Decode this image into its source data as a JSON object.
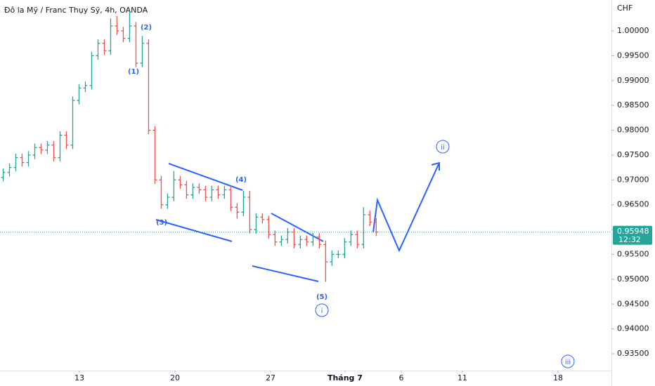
{
  "chart_data": {
    "type": "ohlc",
    "title": "Đô la Mỹ / Franc Thụy Sỹ, 4h, OANDA",
    "currency": "CHF",
    "x": [
      0,
      1,
      2,
      3,
      4,
      5,
      6,
      7,
      8,
      9,
      10,
      11,
      12,
      13,
      14,
      15,
      16,
      17,
      18,
      19,
      20,
      21,
      22,
      23,
      24,
      25,
      26,
      27,
      28,
      29,
      30,
      31,
      32,
      33,
      34,
      35,
      36,
      37,
      38,
      39,
      40,
      41,
      42,
      43,
      44,
      45,
      46,
      47,
      48,
      49,
      50,
      51,
      52,
      53,
      54,
      55,
      56,
      57,
      58,
      59
    ],
    "open": [
      0.9705,
      0.9715,
      0.9725,
      0.9745,
      0.9735,
      0.975,
      0.9765,
      0.976,
      0.977,
      0.9745,
      0.979,
      0.977,
      0.986,
      0.9885,
      0.989,
      0.995,
      0.9975,
      0.996,
      1.001,
      1.0,
      0.9985,
      1.001,
      0.9935,
      0.9975,
      0.98,
      0.97,
      0.965,
      0.9665,
      0.97,
      0.969,
      0.967,
      0.9685,
      0.968,
      0.9665,
      0.968,
      0.967,
      0.968,
      0.9645,
      0.9635,
      0.9665,
      0.96,
      0.9625,
      0.962,
      0.959,
      0.9575,
      0.958,
      0.9595,
      0.957,
      0.958,
      0.9575,
      0.9585,
      0.957,
      0.9535,
      0.955,
      0.955,
      0.9575,
      0.959,
      0.957,
      0.963,
      0.9615
    ],
    "high": [
      0.9723,
      0.9733,
      0.9753,
      0.9753,
      0.9758,
      0.9773,
      0.9773,
      0.9778,
      0.9778,
      0.9798,
      0.9798,
      0.9868,
      0.9893,
      0.9898,
      0.9958,
      0.9983,
      0.9983,
      1.0025,
      1.003,
      1.0008,
      1.004,
      1.0018,
      0.999,
      0.9983,
      0.9808,
      0.9708,
      0.9673,
      0.9718,
      0.9708,
      0.9698,
      0.9693,
      0.9693,
      0.9688,
      0.9688,
      0.9688,
      0.9688,
      0.9688,
      0.9653,
      0.9678,
      0.9678,
      0.9633,
      0.9633,
      0.9628,
      0.9598,
      0.9588,
      0.9603,
      0.9603,
      0.9588,
      0.9588,
      0.9593,
      0.9593,
      0.9578,
      0.9558,
      0.9558,
      0.9583,
      0.9598,
      0.9598,
      0.9645,
      0.9638,
      0.9623
    ],
    "low": [
      0.9697,
      0.9707,
      0.9717,
      0.9727,
      0.9727,
      0.9742,
      0.9752,
      0.9752,
      0.9737,
      0.9737,
      0.9762,
      0.9762,
      0.9852,
      0.9877,
      0.9882,
      0.9942,
      0.9952,
      0.9952,
      0.9992,
      0.9977,
      0.9977,
      0.9927,
      0.9927,
      0.9792,
      0.9692,
      0.9642,
      0.9642,
      0.9657,
      0.9682,
      0.9662,
      0.9662,
      0.9672,
      0.9657,
      0.9657,
      0.9662,
      0.9662,
      0.9637,
      0.9622,
      0.9627,
      0.9592,
      0.9592,
      0.9612,
      0.9582,
      0.9567,
      0.9567,
      0.9572,
      0.9562,
      0.9562,
      0.9567,
      0.9567,
      0.9562,
      0.9495,
      0.9527,
      0.9542,
      0.9542,
      0.9567,
      0.9562,
      0.9562,
      0.9607,
      0.9587
    ],
    "close": [
      0.9715,
      0.9725,
      0.9745,
      0.9735,
      0.975,
      0.9765,
      0.976,
      0.977,
      0.9745,
      0.979,
      0.977,
      0.986,
      0.9885,
      0.989,
      0.995,
      0.9975,
      0.996,
      1.001,
      1.0,
      0.9985,
      1.001,
      0.9935,
      0.9975,
      0.98,
      0.97,
      0.965,
      0.9665,
      0.97,
      0.969,
      0.967,
      0.9685,
      0.968,
      0.9665,
      0.968,
      0.967,
      0.968,
      0.9645,
      0.9635,
      0.9665,
      0.96,
      0.9625,
      0.962,
      0.959,
      0.9575,
      0.958,
      0.9595,
      0.957,
      0.958,
      0.9575,
      0.9585,
      0.957,
      0.9535,
      0.955,
      0.955,
      0.9575,
      0.959,
      0.957,
      0.963,
      0.9615,
      0.9595
    ],
    "up_color": "#26a69a",
    "down_color": "#ef5350",
    "xlim": [
      -0.5,
      96.2
    ],
    "xticks": [
      {
        "value": 12.06,
        "label": "13"
      },
      {
        "value": 27.18,
        "label": "20"
      },
      {
        "value": 42.3,
        "label": "27"
      },
      {
        "value": 54.07,
        "label": "Tháng 7"
      },
      {
        "value": 62.96,
        "label": "6"
      },
      {
        "value": 72.63,
        "label": "11"
      },
      {
        "value": 87.75,
        "label": "18"
      }
    ],
    "ylim": [
      0.93133,
      1.00622
    ],
    "yticks": [
      {
        "value": 1.0,
        "label": "1.00000"
      },
      {
        "value": 0.995,
        "label": "0.99500"
      },
      {
        "value": 0.99,
        "label": "0.99000"
      },
      {
        "value": 0.985,
        "label": "0.98500"
      },
      {
        "value": 0.98,
        "label": "0.98000"
      },
      {
        "value": 0.975,
        "label": "0.97500"
      },
      {
        "value": 0.97,
        "label": "0.97000"
      },
      {
        "value": 0.965,
        "label": "0.96500"
      },
      {
        "value": 0.96,
        "label": "0.96000"
      },
      {
        "value": 0.955,
        "label": "0.95500"
      },
      {
        "value": 0.95,
        "label": "0.95000"
      },
      {
        "value": 0.945,
        "label": "0.94500"
      },
      {
        "value": 0.94,
        "label": "0.94000"
      },
      {
        "value": 0.935,
        "label": "0.93500"
      }
    ],
    "grid": false,
    "current_price": {
      "value": 0.95948,
      "label": "0.95948"
    },
    "countdown": "12:32",
    "annotations": [
      "(1)",
      "(2)",
      "(3)",
      "(4)",
      "(5)",
      "i",
      "ii",
      "iii"
    ]
  }
}
